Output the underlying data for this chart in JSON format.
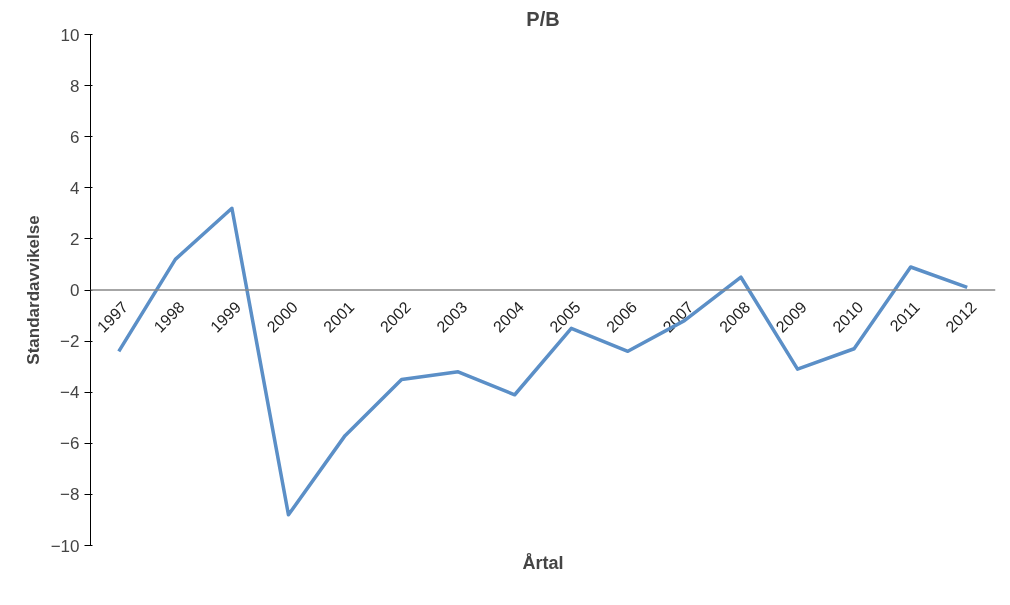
{
  "chart_data": {
    "type": "line",
    "title": "P/B",
    "xlabel": "Årtal",
    "ylabel": "Standardavvikelse",
    "categories": [
      "1997",
      "1998",
      "1999",
      "2000",
      "2001",
      "2002",
      "2003",
      "2004",
      "2005",
      "2006",
      "2007",
      "2008",
      "2009",
      "2010",
      "2011",
      "2012"
    ],
    "series": [
      {
        "color": "#5b8fc7",
        "values": [
          -2.4,
          1.2,
          3.2,
          -8.8,
          -5.7,
          -3.5,
          -3.2,
          -4.1,
          -1.5,
          -2.4,
          -1.2,
          0.5,
          -3.1,
          -2.3,
          0.9,
          0.1
        ]
      }
    ],
    "ylim": [
      -10,
      10
    ],
    "yticks": [
      -10,
      -8,
      -6,
      -4,
      -2,
      0,
      2,
      4,
      6,
      8,
      10
    ],
    "grid": false,
    "marker": "none",
    "line_style": "solid"
  }
}
